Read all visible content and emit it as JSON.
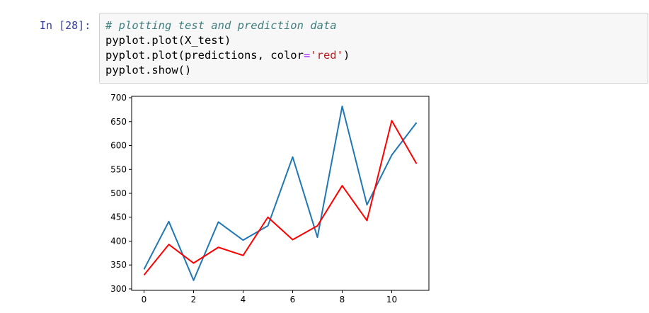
{
  "cell": {
    "prompt": "In [28]:",
    "code": {
      "line1_comment": "# plotting test and prediction data",
      "line2": "pyplot.plot(X_test)",
      "line3_pre": "pyplot.plot(predictions, color",
      "line3_op": "=",
      "line3_str": "'red'",
      "line3_post": ")",
      "line4": "pyplot.show()"
    }
  },
  "chart_data": {
    "type": "line",
    "title": "",
    "xlabel": "",
    "ylabel": "",
    "x": [
      0,
      1,
      2,
      3,
      4,
      5,
      6,
      7,
      8,
      9,
      10,
      11
    ],
    "xlim": [
      -0.5,
      11.5
    ],
    "ylim": [
      297,
      703
    ],
    "xticks": [
      "0",
      "2",
      "4",
      "6",
      "8",
      "10"
    ],
    "xtick_values": [
      0,
      2,
      4,
      6,
      8,
      10
    ],
    "yticks": [
      "300",
      "350",
      "400",
      "450",
      "500",
      "550",
      "600",
      "650",
      "700"
    ],
    "ytick_values": [
      300,
      350,
      400,
      450,
      500,
      550,
      600,
      650,
      700
    ],
    "grid": false,
    "legend": "none",
    "series": [
      {
        "values": [
          341,
          441,
          318,
          440,
          402,
          432,
          576,
          408,
          682,
          476,
          580,
          648
        ],
        "color": "#1f77b4"
      },
      {
        "values": [
          329,
          393,
          354,
          387,
          370,
          450,
          403,
          432,
          516,
          443,
          652,
          562
        ],
        "color": "#ff0000"
      }
    ]
  }
}
